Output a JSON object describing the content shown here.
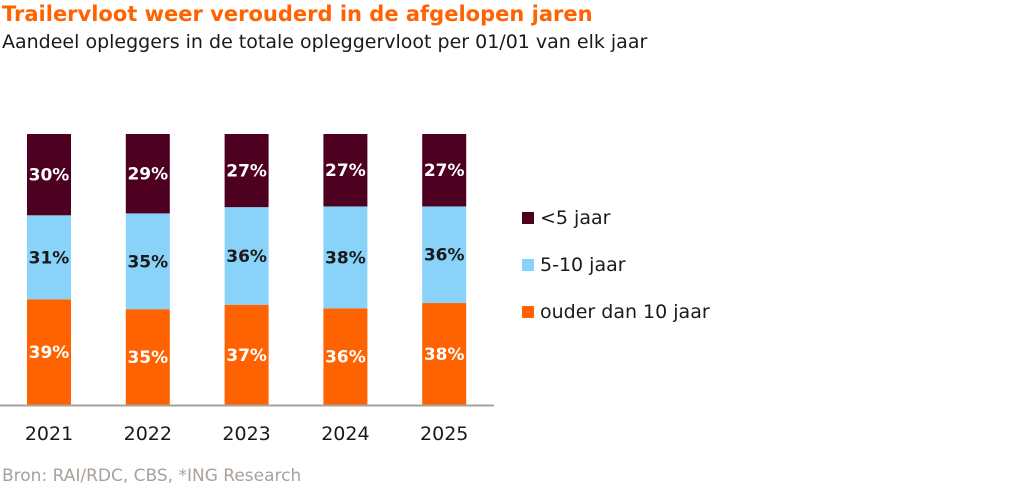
{
  "header": {
    "title": "Trailervloot weer verouderd in de afgelopen jaren",
    "subtitle": "Aandeel opleggers in de totale opleggervloot per 01/01 van elk jaar"
  },
  "footer": {
    "source": "Bron: RAI/RDC, CBS, *ING Research"
  },
  "colors": {
    "lt5": "#4d0020",
    "5to10": "#89d3fb",
    "gt10": "#ff6200",
    "axis": "#a8a19c",
    "label_light": "#ffffff",
    "label_dark": "#1a1a1a"
  },
  "chart_data": {
    "type": "bar",
    "stacked": true,
    "title": "Trailervloot weer verouderd in de afgelopen jaren",
    "subtitle": "Aandeel opleggers in de totale opleggervloot per 01/01 van elk jaar",
    "xlabel": "",
    "ylabel": "",
    "ylim": [
      0,
      100
    ],
    "grid": false,
    "legend_position": "right",
    "categories": [
      "2021",
      "2022",
      "2023",
      "2024",
      "2025"
    ],
    "series": [
      {
        "name": "ouder dan 10 jaar",
        "color_key": "gt10",
        "label_color_key": "label_light",
        "values": [
          39,
          35,
          37,
          36,
          38
        ]
      },
      {
        "name": "5-10 jaar",
        "color_key": "5to10",
        "label_color_key": "label_dark",
        "values": [
          31,
          35,
          36,
          38,
          36
        ]
      },
      {
        "name": "<5 jaar",
        "color_key": "lt5",
        "label_color_key": "label_light",
        "values": [
          30,
          29,
          27,
          27,
          27
        ]
      }
    ],
    "data_label_suffix": "%"
  },
  "legend": {
    "items": [
      {
        "label": "<5 jaar",
        "color_key": "lt5"
      },
      {
        "label": "5-10 jaar",
        "color_key": "5to10"
      },
      {
        "label": "ouder dan 10 jaar",
        "color_key": "gt10"
      }
    ]
  }
}
